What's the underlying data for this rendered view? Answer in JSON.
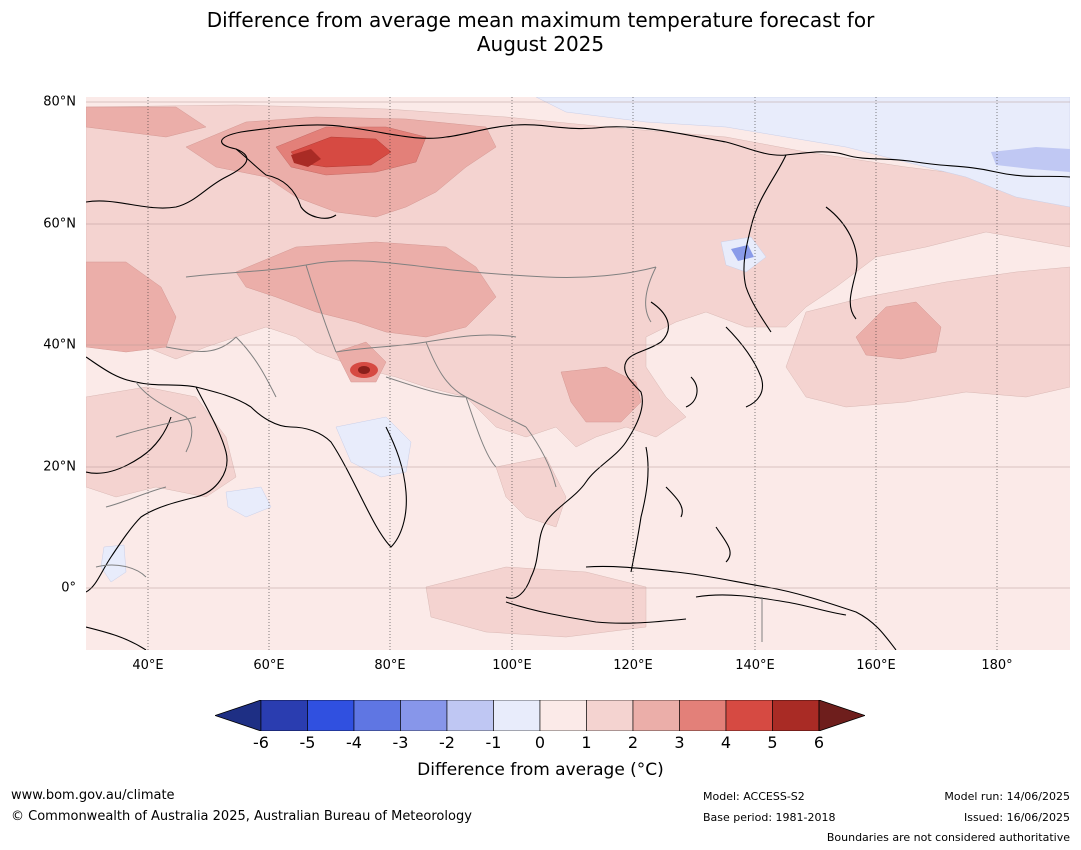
{
  "title_line1": "Difference from average mean maximum temperature forecast for",
  "title_line2": "August 2025",
  "map": {
    "lat_labels": [
      "80°N",
      "60°N",
      "40°N",
      "20°N",
      "0°"
    ],
    "lon_labels": [
      "40°E",
      "60°E",
      "80°E",
      "100°E",
      "120°E",
      "140°E",
      "160°E",
      "180°"
    ],
    "colors": {
      "ocean_base": "#fbeae8",
      "anom_0_1": "#fbeae8",
      "anom_1_2": "#f4d3d0",
      "anom_2_3": "#ebaea9",
      "anom_3_4": "#e38079",
      "anom_4_5": "#d64a42",
      "anom_5_6": "#a92b25",
      "anom_neg_0_1": "#e8ecfb",
      "anom_neg_1_2": "#c0c8f3",
      "anom_neg_2_3": "#8a9be9",
      "coastline": "#000000",
      "border": "#808080"
    }
  },
  "colorbar": {
    "label": "Difference from average (°C)",
    "ticks": [
      "-6",
      "-5",
      "-4",
      "-3",
      "-2",
      "-1",
      "0",
      "1",
      "2",
      "3",
      "4",
      "5",
      "6"
    ],
    "colors": [
      "#1e2f84",
      "#2a3db0",
      "#3050e0",
      "#5f76e3",
      "#8796ea",
      "#bfc7f3",
      "#e8ecfb",
      "#fbeae8",
      "#f4d3d0",
      "#ebaea9",
      "#e38079",
      "#d64a42",
      "#a92b25",
      "#6e1e1c"
    ]
  },
  "footer": {
    "url": "www.bom.gov.au/climate",
    "copyright": "© Commonwealth of Australia 2025, Australian Bureau of Meteorology",
    "model": "Model: ACCESS-S2",
    "base_period": "Base period: 1981-2018",
    "model_run": "Model run: 14/06/2025",
    "issued": "Issued: 16/06/2025",
    "disclaimer": "Boundaries are not considered authoritative"
  }
}
